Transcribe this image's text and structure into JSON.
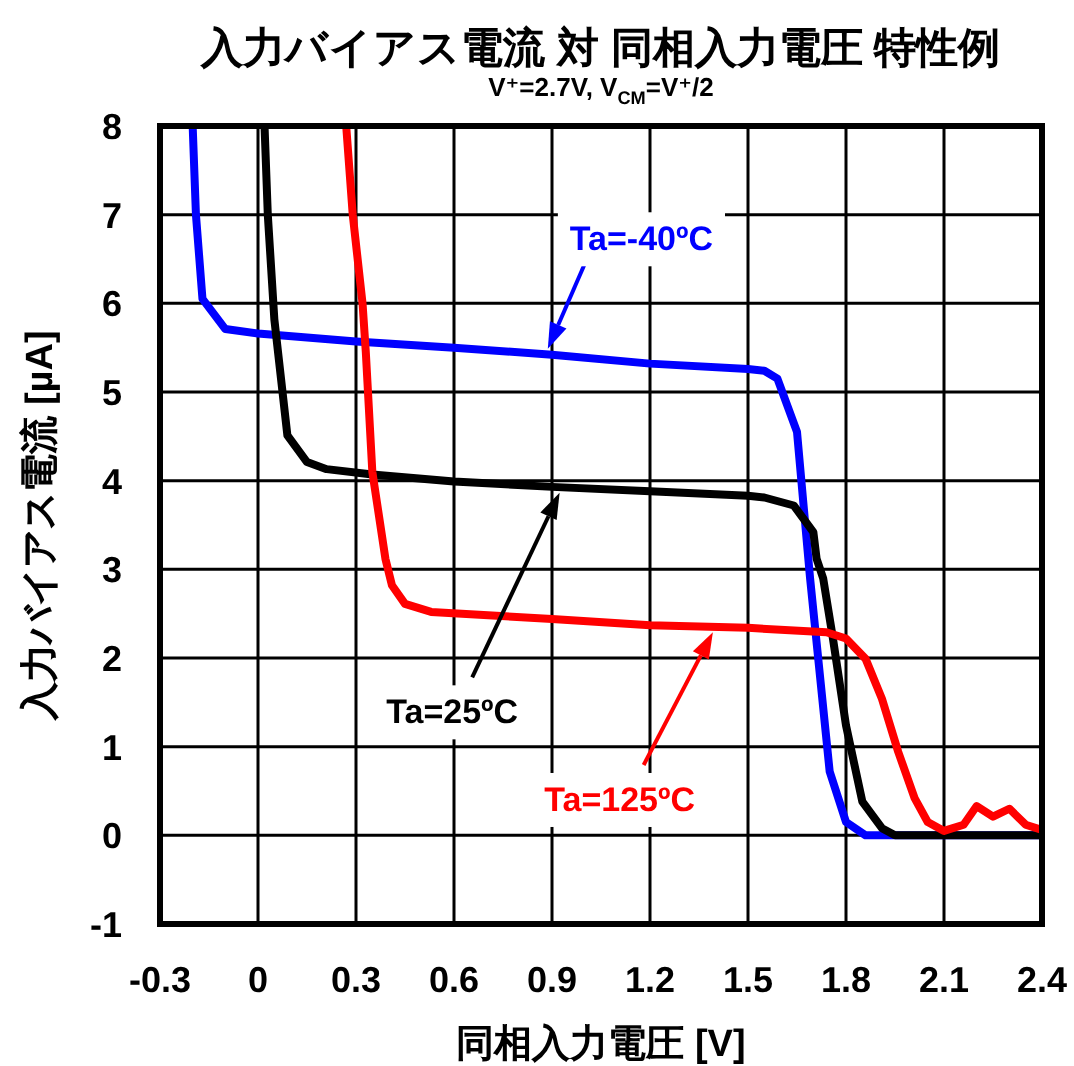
{
  "chart_data": {
    "type": "line",
    "title": "入力バイアス電流 対 同相入力電圧 特性例",
    "subtitle": "V⁺=2.7V, V$_{CM}$=V⁺/2",
    "xlabel": "同相入力電圧 [V]",
    "ylabel": "入力バイアス電流 [µA]",
    "xlim": [
      -0.3,
      2.4
    ],
    "ylim": [
      -1,
      8
    ],
    "xticks": [
      -0.3,
      0,
      0.3,
      0.6,
      0.9,
      1.2,
      1.5,
      1.8,
      2.1,
      2.4
    ],
    "yticks": [
      -1,
      0,
      1,
      2,
      3,
      4,
      5,
      6,
      7,
      8
    ],
    "grid": true,
    "line_style": "solid",
    "series": [
      {
        "name": "Ta=-40ºC",
        "color": "#0000ff",
        "x": [
          -0.2,
          -0.19,
          -0.17,
          -0.1,
          0,
          0.3,
          0.6,
          0.9,
          1.2,
          1.5,
          1.55,
          1.59,
          1.65,
          1.69,
          1.75,
          1.8,
          1.86,
          2.4
        ],
        "values": [
          8,
          7,
          6.05,
          5.71,
          5.66,
          5.57,
          5.5,
          5.42,
          5.32,
          5.26,
          5.24,
          5.15,
          4.55,
          2.9,
          0.72,
          0.15,
          0,
          0
        ]
      },
      {
        "name": "Ta=25ºC",
        "color": "#000000",
        "x": [
          0.02,
          0.03,
          0.05,
          0.09,
          0.15,
          0.21,
          0.35,
          0.6,
          0.9,
          1.2,
          1.5,
          1.55,
          1.64,
          1.7,
          1.71,
          1.73,
          1.76,
          1.8,
          1.85,
          1.91,
          1.95,
          2.4
        ],
        "values": [
          8,
          7,
          5.82,
          4.51,
          4.21,
          4.13,
          4.07,
          3.99,
          3.93,
          3.88,
          3.83,
          3.81,
          3.72,
          3.42,
          3.12,
          2.9,
          2.22,
          1.24,
          0.38,
          0.08,
          0,
          0
        ]
      },
      {
        "name": "Ta=125ºC",
        "color": "#ff0000",
        "x": [
          0.27,
          0.29,
          0.32,
          0.33,
          0.35,
          0.39,
          0.41,
          0.45,
          0.53,
          0.9,
          1.2,
          1.5,
          1.74,
          1.8,
          1.86,
          1.91,
          1.96,
          2.01,
          2.05,
          2.1,
          2.16,
          2.2,
          2.25,
          2.3,
          2.35,
          2.4
        ],
        "values": [
          8,
          7,
          6,
          5.45,
          4.1,
          3.12,
          2.82,
          2.61,
          2.52,
          2.44,
          2.37,
          2.34,
          2.29,
          2.22,
          1.99,
          1.54,
          0.94,
          0.42,
          0.15,
          0.05,
          0.12,
          0.33,
          0.21,
          0.3,
          0.12,
          0.06
        ]
      }
    ]
  }
}
